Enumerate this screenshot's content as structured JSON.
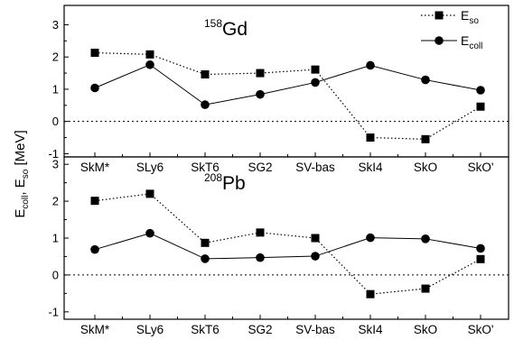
{
  "chart_data": [
    {
      "type": "line",
      "nucleus_mass": "158",
      "nucleus_symbol": "Gd",
      "categories": [
        "SkM*",
        "SLy6",
        "SkT6",
        "SG2",
        "SV-bas",
        "SkI4",
        "SkO",
        "SkO'"
      ],
      "series": [
        {
          "name": "E_so",
          "values": [
            2.13,
            2.08,
            1.46,
            1.5,
            1.61,
            -0.5,
            -0.55,
            0.46
          ]
        },
        {
          "name": "E_coll",
          "values": [
            1.04,
            1.76,
            0.52,
            0.84,
            1.21,
            1.74,
            1.29,
            0.97
          ]
        }
      ],
      "ylim": [
        -1.1,
        3.6
      ],
      "yticks": [
        "-1",
        "0",
        "1",
        "2",
        "3"
      ],
      "zero_line": true
    },
    {
      "type": "line",
      "nucleus_mass": "208",
      "nucleus_symbol": "Pb",
      "categories": [
        "SkM*",
        "SLy6",
        "SkT6",
        "SG2",
        "SV-bas",
        "SkI4",
        "SkO",
        "SkO'"
      ],
      "series": [
        {
          "name": "E_so",
          "values": [
            2.01,
            2.2,
            0.87,
            1.15,
            1.0,
            -0.52,
            -0.37,
            0.43
          ]
        },
        {
          "name": "E_coll",
          "values": [
            0.69,
            1.13,
            0.44,
            0.47,
            0.51,
            1.01,
            0.98,
            0.72
          ]
        }
      ],
      "ylim": [
        -1.2,
        3.2
      ],
      "yticks": [
        "-1",
        "0",
        "1",
        "2",
        "3"
      ],
      "zero_line": true
    }
  ],
  "legend": {
    "position": "top-right",
    "items": [
      {
        "main": "E",
        "sub": "so",
        "style": "dotted",
        "marker": "square"
      },
      {
        "main": "E",
        "sub": "coll",
        "style": "solid",
        "marker": "circle"
      }
    ]
  },
  "ylabel": {
    "part1_main": "E",
    "part1_sub": "coll",
    "separator": ", ",
    "part2_main": "E",
    "part2_sub": "so",
    "unit": " [MeV]"
  }
}
